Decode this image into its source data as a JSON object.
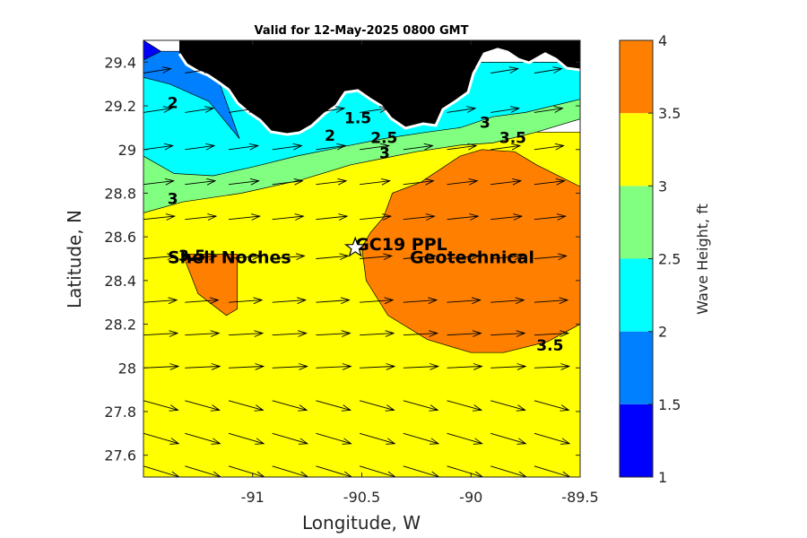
{
  "chart_data": {
    "type": "contour-map",
    "title": "Valid for 12-May-2025 0800 GMT",
    "xlabel": "Longitude, W",
    "ylabel": "Latitude, N",
    "xlim": [
      -91.5,
      -89.5
    ],
    "ylim": [
      27.5,
      29.5
    ],
    "xticks": [
      -91,
      -90.5,
      -90,
      -89.5
    ],
    "xtick_labels": [
      "-91",
      "-90.5",
      "-90",
      "-89.5"
    ],
    "yticks": [
      27.6,
      27.8,
      28,
      28.2,
      28.4,
      28.6,
      28.8,
      29,
      29.2,
      29.4
    ],
    "ytick_labels": [
      "27.6",
      "27.8",
      "28",
      "28.2",
      "28.4",
      "28.6",
      "28.8",
      "29",
      "29.2",
      "29.4"
    ],
    "colorbar": {
      "label": "Wave Height, ft",
      "levels": [
        1,
        1.5,
        2,
        2.5,
        3,
        3.5,
        4
      ],
      "tick_labels": [
        "1",
        "1.5",
        "2",
        "2.5",
        "3",
        "3.5",
        "4"
      ],
      "colors": [
        "#0000ff",
        "#0080ff",
        "#00ffff",
        "#80ff80",
        "#ffff00",
        "#ff8000"
      ]
    },
    "regions": [
      {
        "level_min": 3.0,
        "level_max": 3.5,
        "color": "#ffff00",
        "polygon": [
          [
            -91.5,
            27.5
          ],
          [
            -89.5,
            27.5
          ],
          [
            -89.5,
            29.08
          ],
          [
            -91.5,
            29.08
          ]
        ]
      },
      {
        "level_min": 2.5,
        "level_max": 3.0,
        "color": "#80ff80",
        "polygon": [
          [
            -91.5,
            28.71
          ],
          [
            -91.32,
            28.76
          ],
          [
            -91.05,
            28.8
          ],
          [
            -90.78,
            28.86
          ],
          [
            -90.55,
            28.93
          ],
          [
            -90.4,
            28.96
          ],
          [
            -90.25,
            28.99
          ],
          [
            -90.05,
            29.02
          ],
          [
            -89.9,
            29.03
          ],
          [
            -89.7,
            29.08
          ],
          [
            -89.5,
            29.14
          ],
          [
            -89.5,
            29.38
          ],
          [
            -91.5,
            29.38
          ]
        ]
      },
      {
        "level_min": 2.0,
        "level_max": 2.5,
        "color": "#00ffff",
        "polygon": [
          [
            -91.5,
            28.97
          ],
          [
            -91.36,
            28.89
          ],
          [
            -91.18,
            28.88
          ],
          [
            -91.0,
            28.92
          ],
          [
            -90.8,
            28.97
          ],
          [
            -90.6,
            29.01
          ],
          [
            -90.4,
            29.05
          ],
          [
            -90.2,
            29.08
          ],
          [
            -90.05,
            29.1
          ],
          [
            -89.9,
            29.15
          ],
          [
            -89.75,
            29.17
          ],
          [
            -89.5,
            29.23
          ],
          [
            -89.5,
            29.4
          ],
          [
            -91.5,
            29.4
          ]
        ]
      },
      {
        "level_min": 1.5,
        "level_max": 2.0,
        "color": "#0080ff",
        "polygon": [
          [
            -91.5,
            29.33
          ],
          [
            -91.38,
            29.3
          ],
          [
            -91.2,
            29.22
          ],
          [
            -91.06,
            29.05
          ],
          [
            -91.15,
            29.3
          ],
          [
            -91.3,
            29.45
          ],
          [
            -91.5,
            29.45
          ]
        ]
      },
      {
        "level_min": 1.0,
        "level_max": 1.5,
        "color": "#0000ff",
        "polygon": [
          [
            -91.5,
            29.41
          ],
          [
            -91.42,
            29.45
          ],
          [
            -91.5,
            29.5
          ]
        ]
      },
      {
        "level_min": 3.5,
        "level_max": 4.0,
        "color": "#ff8000",
        "polygon": [
          [
            -91.32,
            28.52
          ],
          [
            -91.16,
            28.52
          ],
          [
            -91.07,
            28.52
          ],
          [
            -91.07,
            28.27
          ],
          [
            -91.12,
            28.24
          ],
          [
            -91.25,
            28.34
          ]
        ]
      },
      {
        "level_min": 3.5,
        "level_max": 4.0,
        "color": "#ff8000",
        "polygon": [
          [
            -90.5,
            28.55
          ],
          [
            -90.46,
            28.62
          ],
          [
            -90.4,
            28.69
          ],
          [
            -90.36,
            28.8
          ],
          [
            -90.23,
            28.85
          ],
          [
            -90.05,
            28.97
          ],
          [
            -89.95,
            29.0
          ],
          [
            -89.8,
            28.99
          ],
          [
            -89.7,
            28.93
          ],
          [
            -89.5,
            28.83
          ],
          [
            -89.5,
            28.2
          ],
          [
            -89.65,
            28.12
          ],
          [
            -89.85,
            28.07
          ],
          [
            -90.0,
            28.07
          ],
          [
            -90.2,
            28.13
          ],
          [
            -90.38,
            28.24
          ],
          [
            -90.48,
            28.4
          ]
        ]
      }
    ],
    "contour_labels": [
      {
        "text": "2",
        "lon": -91.39,
        "lat": 29.19
      },
      {
        "text": "1.5",
        "lon": -90.58,
        "lat": 29.12
      },
      {
        "text": "2",
        "lon": -90.67,
        "lat": 29.04
      },
      {
        "text": "2.5",
        "lon": -90.46,
        "lat": 29.03
      },
      {
        "text": "3",
        "lon": -90.42,
        "lat": 28.96
      },
      {
        "text": "3",
        "lon": -89.96,
        "lat": 29.1
      },
      {
        "text": "3.5",
        "lon": -89.87,
        "lat": 29.03
      },
      {
        "text": "3",
        "lon": -91.39,
        "lat": 28.75
      },
      {
        "text": "3.5",
        "lon": -89.7,
        "lat": 28.08
      },
      {
        "text": "3.5",
        "lon": -91.34,
        "lat": 28.49
      }
    ],
    "sites": [
      {
        "name": "Shell Noches",
        "lon": -91.5,
        "lat": 28.48
      },
      {
        "name": "GC19 PPL",
        "lon": -90.53,
        "lat": 28.54
      },
      {
        "name": "Geotechnical",
        "lon": -90.28,
        "lat": 28.48
      }
    ],
    "marker": {
      "type": "star",
      "lon": -90.53,
      "lat": 28.55
    },
    "vectors": {
      "rows_lat": [
        27.55,
        27.7,
        27.85,
        28.0,
        28.15,
        28.3,
        28.5,
        28.68,
        28.84,
        29.0,
        29.17,
        29.35
      ],
      "cols_lon": [
        -91.5,
        -91.31,
        -91.11,
        -90.91,
        -90.71,
        -90.51,
        -90.31,
        -90.11,
        -89.91,
        -89.71
      ],
      "direction": "toward east, slight northward rotation in north"
    }
  }
}
